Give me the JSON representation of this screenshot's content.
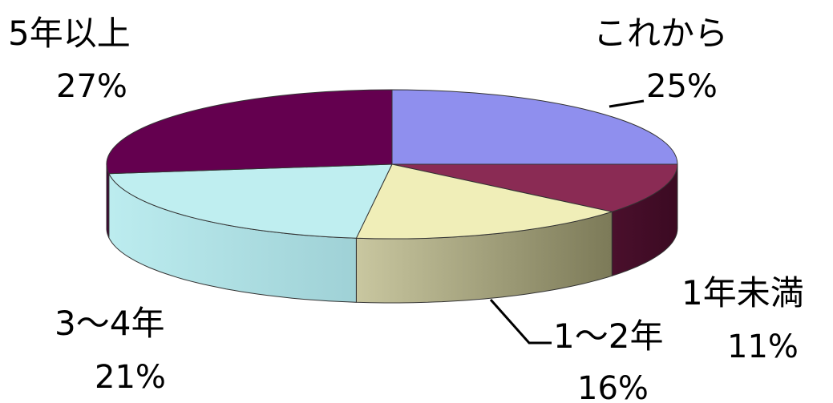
{
  "chart_data": {
    "type": "pie",
    "title": "",
    "categories": [
      "これから",
      "1年未満",
      "1～2年",
      "3～4年",
      "5年以上"
    ],
    "values": [
      25,
      11,
      16,
      21,
      27
    ],
    "value_labels": [
      "25%",
      "11%",
      "16%",
      "21%",
      "27%"
    ],
    "colors": [
      "#8f8fee",
      "#8a2b54",
      "#f0eeb8",
      "#bfeef0",
      "#64004f"
    ],
    "legend": "none",
    "style": "3d"
  }
}
